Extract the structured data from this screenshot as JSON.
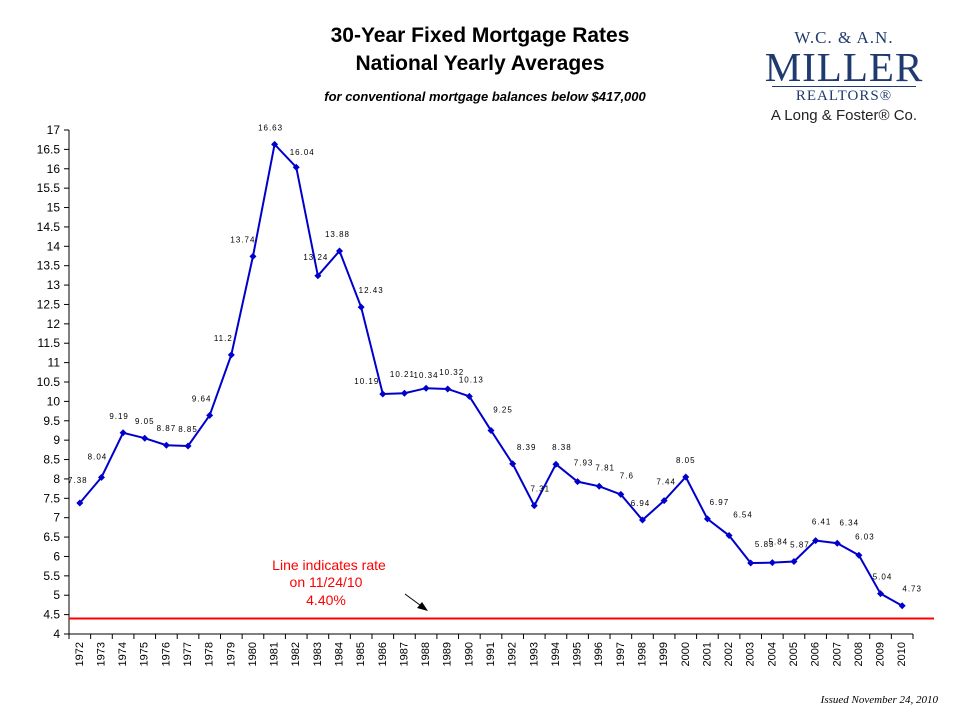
{
  "title_line1": "30-Year Fixed Mortgage Rates",
  "title_line2": "National Yearly Averages",
  "subtitle": "for conventional mortgage balances below $417,000",
  "logo": {
    "line1": "W.C. & A.N.",
    "line2": "MILLER",
    "line3": "REALTORS®",
    "line4": "A Long & Foster® Co."
  },
  "issued": "Issued November 24, 2010",
  "annotation": {
    "line1": "Line indicates rate",
    "line2": "on 11/24/10",
    "line3": "4.40%"
  },
  "colors": {
    "series": "#0000cc",
    "reference_line": "#ff0000",
    "annotation_text": "#ff0000"
  },
  "chart_data": {
    "type": "line",
    "x": [
      "1972",
      "1973",
      "1974",
      "1975",
      "1976",
      "1977",
      "1978",
      "1979",
      "1980",
      "1981",
      "1982",
      "1983",
      "1984",
      "1985",
      "1986",
      "1987",
      "1988",
      "1989",
      "1990",
      "1991",
      "1992",
      "1993",
      "1994",
      "1995",
      "1996",
      "1997",
      "1998",
      "1999",
      "2000",
      "2001",
      "2002",
      "2003",
      "2004",
      "2005",
      "2006",
      "2007",
      "2008",
      "2009",
      "2010"
    ],
    "values": [
      7.38,
      8.04,
      9.19,
      9.05,
      8.87,
      8.85,
      9.64,
      11.2,
      13.74,
      16.63,
      16.04,
      13.24,
      13.88,
      12.43,
      10.19,
      10.21,
      10.34,
      10.32,
      10.13,
      9.25,
      8.39,
      7.31,
      8.38,
      7.93,
      7.81,
      7.6,
      6.94,
      7.44,
      8.05,
      6.97,
      6.54,
      5.83,
      5.84,
      5.87,
      6.41,
      6.34,
      6.03,
      5.04,
      4.73
    ],
    "data_labels": [
      "7.38",
      "8.04",
      "9.19",
      "9.05",
      "8.87",
      "8.85",
      "9.64",
      "11.2",
      "13.74",
      "16.63",
      "16.04",
      "13.24",
      "13.88",
      "12.43",
      "10.19",
      "10.21",
      "10.34",
      "10.32",
      "10.13",
      "9.25",
      "8.39",
      "7.31",
      "8.38",
      "7.93",
      "7.81",
      "7.6",
      "6.94",
      "7.44",
      "8.05",
      "6.97",
      "6.54",
      "5.83",
      "5.84",
      "5.87",
      "6.41",
      "6.34",
      "6.03",
      "5.04",
      "4.73"
    ],
    "ylim": [
      4,
      17
    ],
    "yticks": [
      "4",
      "4.5",
      "5",
      "5.5",
      "6",
      "6.5",
      "7",
      "7.5",
      "8",
      "8.5",
      "9",
      "9.5",
      "10",
      "10.5",
      "11",
      "11.5",
      "12",
      "12.5",
      "13",
      "13.5",
      "14",
      "14.5",
      "15",
      "15.5",
      "16",
      "16.5",
      "17"
    ],
    "reference_value": 4.4,
    "grid": false,
    "legend": "none"
  }
}
